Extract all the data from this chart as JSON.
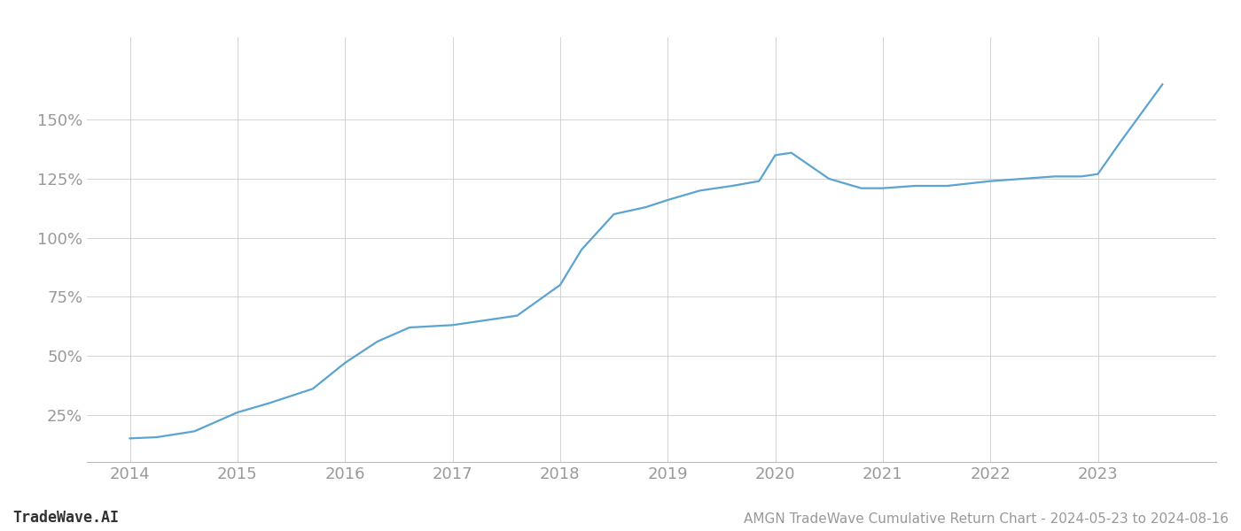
{
  "title": "AMGN TradeWave Cumulative Return Chart - 2024-05-23 to 2024-08-16",
  "watermark": "TradeWave.AI",
  "line_color": "#5ba3d0",
  "background_color": "#ffffff",
  "grid_color": "#cccccc",
  "x_values": [
    2014.0,
    2014.25,
    2014.6,
    2015.0,
    2015.3,
    2015.7,
    2016.0,
    2016.3,
    2016.6,
    2017.0,
    2017.3,
    2017.6,
    2018.0,
    2018.2,
    2018.5,
    2018.8,
    2019.0,
    2019.3,
    2019.6,
    2019.85,
    2020.0,
    2020.15,
    2020.5,
    2020.8,
    2021.0,
    2021.3,
    2021.6,
    2022.0,
    2022.3,
    2022.6,
    2022.85,
    2023.0,
    2023.2,
    2023.6
  ],
  "y_values": [
    15,
    15.5,
    18,
    26,
    30,
    36,
    47,
    56,
    62,
    63,
    65,
    67,
    80,
    95,
    110,
    113,
    116,
    120,
    122,
    124,
    135,
    136,
    125,
    121,
    121,
    122,
    122,
    124,
    125,
    126,
    126,
    127,
    140,
    165
  ],
  "yticks": [
    25,
    50,
    75,
    100,
    125,
    150
  ],
  "xlim": [
    2013.6,
    2024.1
  ],
  "ylim": [
    5,
    185
  ],
  "xticks": [
    2014,
    2015,
    2016,
    2017,
    2018,
    2019,
    2020,
    2021,
    2022,
    2023
  ],
  "line_width": 1.6,
  "tick_label_color": "#999999",
  "tick_label_fontsize": 13,
  "footer_fontsize": 11,
  "footer_color": "#999999",
  "watermark_fontsize": 12,
  "watermark_color": "#333333"
}
